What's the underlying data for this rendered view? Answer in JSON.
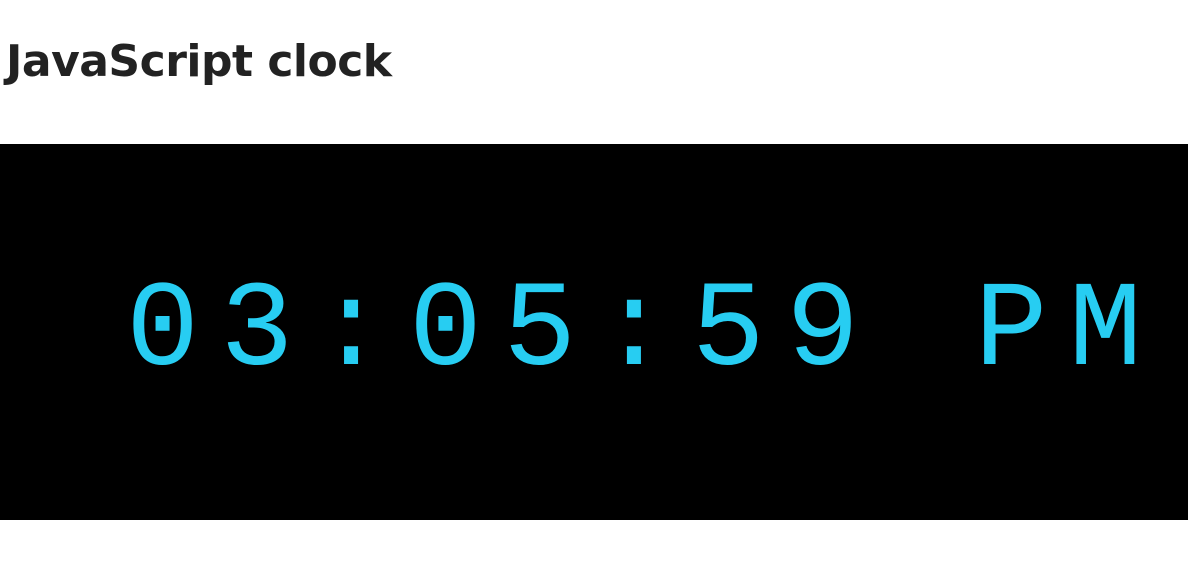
{
  "header": {
    "title": "JavaScript clock"
  },
  "clock": {
    "time": "03:05:59 PM"
  }
}
